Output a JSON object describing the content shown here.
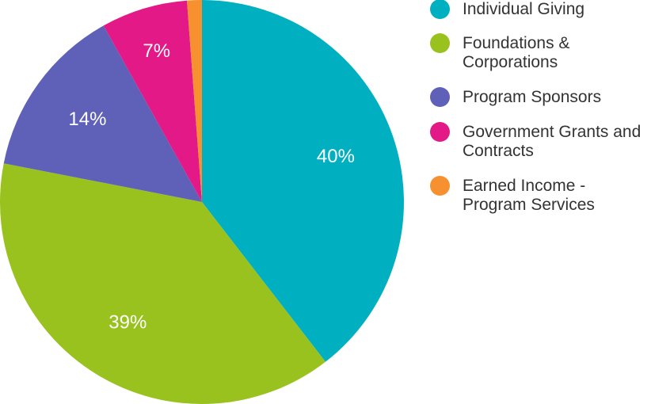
{
  "chart_data": {
    "type": "pie",
    "title": "",
    "categories": [
      "Individual Giving",
      "Foundations & Corporations",
      "Program Sponsors",
      "Government Grants and Contracts",
      "Earned Income - Program Services"
    ],
    "values": [
      40,
      39,
      14,
      7,
      1.2
    ],
    "data_labels": [
      "40%",
      "39%",
      "14%",
      "7%",
      ""
    ],
    "colors": [
      "#00B0C1",
      "#9AC21F",
      "#5F61B9",
      "#E21987",
      "#F7902F"
    ],
    "legend_position": "right"
  },
  "legend": {
    "items": [
      {
        "label": "Individual Giving",
        "color": "#00B0C1"
      },
      {
        "label": "Foundations & Corporations",
        "color": "#9AC21F"
      },
      {
        "label": "Program Sponsors",
        "color": "#5F61B9"
      },
      {
        "label": "Government Grants and Contracts",
        "color": "#E21987"
      },
      {
        "label": "Earned Income - Program Services",
        "color": "#F7902F"
      }
    ]
  }
}
